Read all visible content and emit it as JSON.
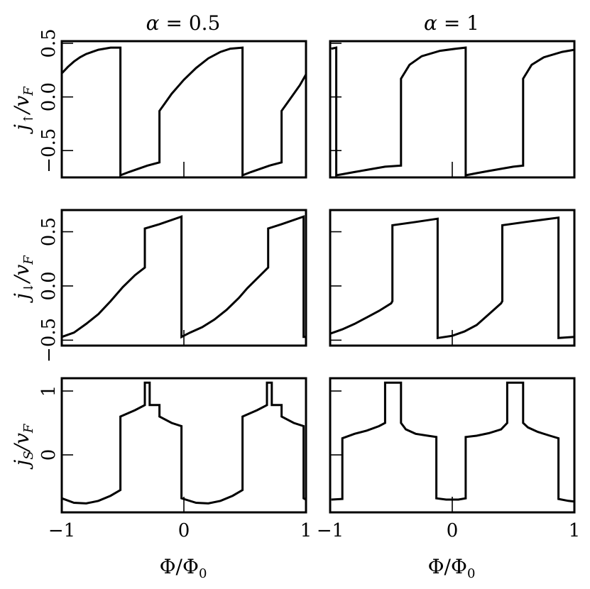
{
  "figure": {
    "columns": [
      {
        "title_greek": "α",
        "title_rest": " = 0.5"
      },
      {
        "title_greek": "α",
        "title_rest": " = 1"
      }
    ],
    "rows": [
      {
        "ylabel_main": "j",
        "ylabel_sub": "↑",
        "ylabel_tail": "/v",
        "ylabel_tail_sub": "F"
      },
      {
        "ylabel_main": "j",
        "ylabel_sub": "↓",
        "ylabel_tail": "/v",
        "ylabel_tail_sub": "F"
      },
      {
        "ylabel_main": "j",
        "ylabel_sub": "S",
        "ylabel_tail": "/v",
        "ylabel_tail_sub": "F"
      }
    ],
    "xlabel": "Φ/Φ₀",
    "xlabel_main": "Φ/Φ",
    "xlabel_sub": "0"
  },
  "chart_data": [
    {
      "type": "line",
      "row": 0,
      "col": 0,
      "xlim": [
        -1,
        1
      ],
      "ylim": [
        -0.75,
        0.52
      ],
      "xticks": [
        -1,
        0,
        1
      ],
      "xticklabels": [
        "−1",
        "0",
        "1"
      ],
      "yticks": [
        -0.5,
        0.0,
        0.5
      ],
      "yticklabels": [
        "−0.5",
        "0.0",
        "0.5"
      ],
      "series": [
        {
          "x": [
            -1,
            -0.95,
            -0.9,
            -0.85,
            -0.8,
            -0.75,
            -0.7,
            -0.65,
            -0.6,
            -0.52,
            -0.52,
            -0.45,
            -0.4,
            -0.35,
            -0.3,
            -0.2,
            -0.2,
            -0.15,
            -0.1,
            0,
            0.1,
            0.2,
            0.3,
            0.38,
            0.48,
            0.48,
            0.55,
            0.6,
            0.65,
            0.7,
            0.8,
            0.8,
            0.85,
            0.9,
            0.95,
            1
          ],
          "y": [
            0.22,
            0.28,
            0.33,
            0.37,
            0.4,
            0.42,
            0.44,
            0.45,
            0.46,
            0.46,
            -0.73,
            -0.7,
            -0.68,
            -0.66,
            -0.64,
            -0.61,
            -0.13,
            -0.05,
            0.03,
            0.16,
            0.27,
            0.36,
            0.42,
            0.45,
            0.46,
            -0.73,
            -0.7,
            -0.68,
            -0.66,
            -0.64,
            -0.61,
            -0.13,
            -0.05,
            0.03,
            0.11,
            0.21
          ]
        }
      ]
    },
    {
      "type": "line",
      "row": 0,
      "col": 1,
      "xlim": [
        -1,
        1
      ],
      "ylim": [
        -0.75,
        0.52
      ],
      "xticks": [
        -1,
        0,
        1
      ],
      "xticklabels": [
        "−1",
        "0",
        "1"
      ],
      "yticks": [
        -0.5,
        0.0,
        0.5
      ],
      "yticklabels": [],
      "series": [
        {
          "x": [
            -0.99,
            -0.95,
            -0.95,
            -0.9,
            -0.8,
            -0.7,
            -0.6,
            -0.55,
            -0.42,
            -0.42,
            -0.35,
            -0.25,
            -0.1,
            0.03,
            0.11,
            0.11,
            0.2,
            0.3,
            0.4,
            0.5,
            0.58,
            0.58,
            0.65,
            0.75,
            0.9,
            1
          ],
          "y": [
            0.45,
            0.46,
            -0.73,
            -0.72,
            -0.7,
            -0.68,
            -0.66,
            -0.65,
            -0.64,
            0.17,
            0.3,
            0.38,
            0.43,
            0.45,
            0.46,
            -0.73,
            -0.71,
            -0.69,
            -0.67,
            -0.65,
            -0.64,
            0.17,
            0.3,
            0.37,
            0.42,
            0.44
          ]
        }
      ]
    },
    {
      "type": "line",
      "row": 1,
      "col": 0,
      "xlim": [
        -1,
        1
      ],
      "ylim": [
        -0.55,
        0.7
      ],
      "xticks": [
        -1,
        0,
        1
      ],
      "xticklabels": [
        "−1",
        "0",
        "1"
      ],
      "yticks": [
        -0.5,
        0.0,
        0.5
      ],
      "yticklabels": [
        "−0.5",
        "0.0",
        "0.5"
      ],
      "series": [
        {
          "x": [
            -1,
            -0.9,
            -0.8,
            -0.7,
            -0.6,
            -0.5,
            -0.4,
            -0.32,
            -0.32,
            -0.2,
            -0.02,
            -0.02,
            0.05,
            0.15,
            0.25,
            0.35,
            0.45,
            0.52,
            0.69,
            0.69,
            0.8,
            0.98,
            0.98,
            1
          ],
          "y": [
            -0.47,
            -0.43,
            -0.35,
            -0.26,
            -0.14,
            -0.01,
            0.1,
            0.17,
            0.53,
            0.57,
            0.64,
            -0.47,
            -0.43,
            -0.38,
            -0.31,
            -0.22,
            -0.11,
            -0.02,
            0.17,
            0.53,
            0.57,
            0.64,
            -0.47,
            -0.47
          ]
        }
      ]
    },
    {
      "type": "line",
      "row": 1,
      "col": 1,
      "xlim": [
        -1,
        1
      ],
      "ylim": [
        -0.55,
        0.7
      ],
      "xticks": [
        -1,
        0,
        1
      ],
      "xticklabels": [
        "−1",
        "0",
        "1"
      ],
      "yticks": [
        -0.5,
        0.0,
        0.5
      ],
      "yticklabels": [],
      "series": [
        {
          "x": [
            -1,
            -0.9,
            -0.8,
            -0.7,
            -0.6,
            -0.5,
            -0.49,
            -0.49,
            -0.3,
            -0.12,
            -0.12,
            0,
            0.1,
            0.2,
            0.3,
            0.4,
            0.41,
            0.41,
            0.6,
            0.87,
            0.87,
            1
          ],
          "y": [
            -0.44,
            -0.4,
            -0.35,
            -0.29,
            -0.23,
            -0.16,
            -0.14,
            0.56,
            0.59,
            0.62,
            -0.48,
            -0.46,
            -0.42,
            -0.36,
            -0.26,
            -0.16,
            -0.14,
            0.56,
            0.59,
            0.63,
            -0.48,
            -0.47
          ]
        }
      ]
    },
    {
      "type": "line",
      "row": 2,
      "col": 0,
      "xlim": [
        -1,
        1
      ],
      "ylim": [
        -0.9,
        1.2
      ],
      "xticks": [
        -1,
        0,
        1
      ],
      "xticklabels": [
        "−1",
        "0",
        "1"
      ],
      "yticks": [
        0,
        1
      ],
      "yticklabels": [
        "0",
        "1"
      ],
      "series": [
        {
          "x": [
            -1,
            -0.9,
            -0.8,
            -0.7,
            -0.6,
            -0.52,
            -0.52,
            -0.4,
            -0.32,
            -0.32,
            -0.28,
            -0.28,
            -0.2,
            -0.2,
            -0.1,
            -0.02,
            -0.02,
            0.1,
            0.2,
            0.3,
            0.4,
            0.48,
            0.48,
            0.6,
            0.68,
            0.68,
            0.72,
            0.72,
            0.8,
            0.8,
            0.9,
            0.98,
            0.98,
            1
          ],
          "y": [
            -0.68,
            -0.75,
            -0.76,
            -0.72,
            -0.64,
            -0.55,
            0.6,
            0.7,
            0.78,
            1.13,
            1.13,
            0.78,
            0.78,
            0.6,
            0.5,
            0.45,
            -0.68,
            -0.75,
            -0.76,
            -0.72,
            -0.64,
            -0.55,
            0.6,
            0.7,
            0.78,
            1.13,
            1.13,
            0.78,
            0.78,
            0.6,
            0.5,
            0.45,
            -0.68,
            -0.7
          ]
        }
      ]
    },
    {
      "type": "line",
      "row": 2,
      "col": 1,
      "xlim": [
        -1,
        1
      ],
      "ylim": [
        -0.9,
        1.2
      ],
      "xticks": [
        -1,
        0,
        1
      ],
      "xticklabels": [
        "−1",
        "0",
        "1"
      ],
      "yticks": [
        0,
        1
      ],
      "yticklabels": [],
      "series": [
        {
          "x": [
            -0.99,
            -0.9,
            -0.9,
            -0.8,
            -0.7,
            -0.6,
            -0.55,
            -0.55,
            -0.42,
            -0.42,
            -0.38,
            -0.3,
            -0.2,
            -0.13,
            -0.13,
            -0.05,
            0.05,
            0.11,
            0.11,
            0.2,
            0.3,
            0.4,
            0.45,
            0.45,
            0.58,
            0.58,
            0.62,
            0.7,
            0.8,
            0.87,
            0.87,
            0.95,
            1
          ],
          "y": [
            -0.7,
            -0.69,
            0.26,
            0.33,
            0.38,
            0.45,
            0.5,
            1.13,
            1.13,
            0.5,
            0.4,
            0.33,
            0.3,
            0.28,
            -0.68,
            -0.7,
            -0.7,
            -0.68,
            0.28,
            0.3,
            0.34,
            0.4,
            0.5,
            1.13,
            1.13,
            0.5,
            0.43,
            0.36,
            0.3,
            0.26,
            -0.69,
            -0.72,
            -0.73
          ]
        }
      ]
    }
  ]
}
